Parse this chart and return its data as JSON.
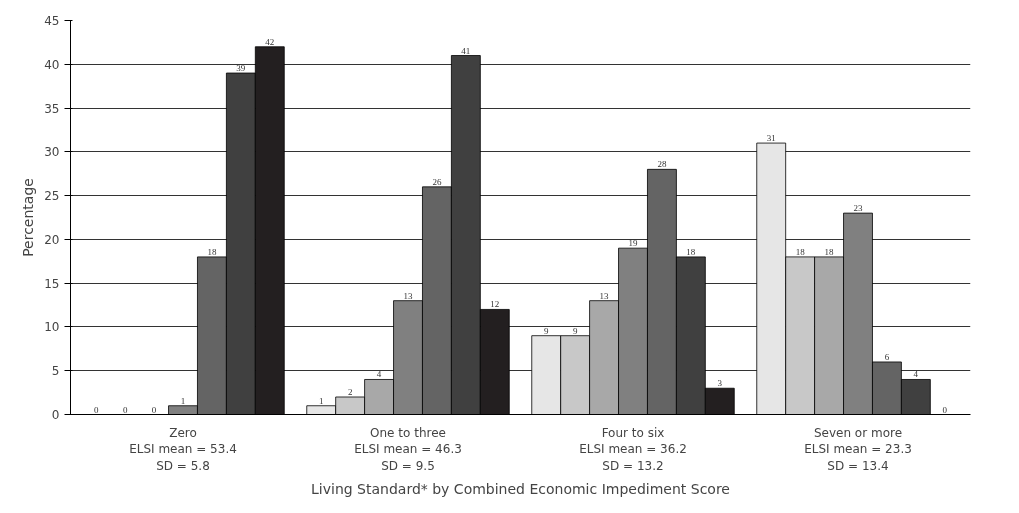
{
  "chart_data": {
    "type": "bar",
    "xlabel": "Living Standard* by Combined Economic Impediment Score",
    "ylabel": "Percentage",
    "categories": [
      "Zero\nELSI mean = 53.4\nSD = 5.8",
      "One to three\nELSI mean = 46.3\nSD = 9.5",
      "Four to six\nELSI mean = 36.2\nSD = 13.2",
      "Seven or more\nELSI mean = 23.3\nSD = 13.4"
    ],
    "series": [
      {
        "color": "#e6e6e6",
        "values": [
          0,
          1,
          9,
          31
        ]
      },
      {
        "color": "#c8c8c8",
        "values": [
          0,
          2,
          9,
          18
        ]
      },
      {
        "color": "#a8a8a8",
        "values": [
          0,
          4,
          13,
          18
        ]
      },
      {
        "color": "#808080",
        "values": [
          1,
          13,
          19,
          23
        ]
      },
      {
        "color": "#646464",
        "values": [
          18,
          26,
          28,
          6
        ]
      },
      {
        "color": "#404040",
        "values": [
          39,
          41,
          18,
          4
        ]
      },
      {
        "color": "#231f20",
        "values": [
          42,
          12,
          3,
          0
        ]
      }
    ],
    "ylim": [
      0,
      45
    ],
    "yticks": [
      0,
      5,
      10,
      15,
      20,
      25,
      30,
      35,
      40,
      45
    ],
    "grid": "y",
    "data_labels": true
  }
}
